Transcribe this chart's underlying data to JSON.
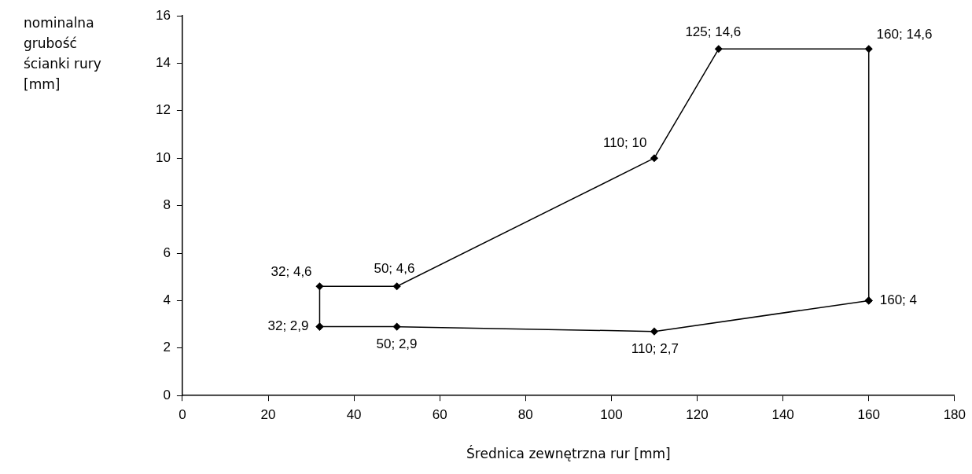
{
  "chart_data": {
    "type": "line",
    "xlabel": "Średnica zewnętrzna rur [mm]",
    "ylabel": "nominalna grubość ścianki rury [mm]",
    "series": [
      {
        "color": "#000000",
        "x": [
          32,
          32,
          50,
          110,
          125,
          160,
          160
        ],
        "values": [
          2.9,
          4.6,
          4.6,
          10,
          14.6,
          14.6,
          4
        ],
        "value_labels": [
          "32; 2,9",
          "32; 4,6",
          "50; 4,6",
          "110; 10",
          "125; 14,6",
          "160; 14,6",
          "160; 4"
        ]
      },
      {
        "color": "#000000",
        "x": [
          32,
          50,
          110,
          160
        ],
        "values": [
          2.9,
          2.9,
          2.7,
          4
        ],
        "value_labels": [
          null,
          "50; 2,9",
          "110; 2,7",
          null
        ]
      }
    ],
    "xlim": [
      0,
      180
    ],
    "xticks": [
      0,
      20,
      40,
      60,
      80,
      100,
      120,
      140,
      160,
      180
    ],
    "ylim": [
      0,
      16
    ],
    "yticks": [
      0,
      2,
      4,
      6,
      8,
      10,
      12,
      14,
      16
    ],
    "grid": false,
    "legend": false,
    "marker": "diamond",
    "line_style": "solid"
  }
}
